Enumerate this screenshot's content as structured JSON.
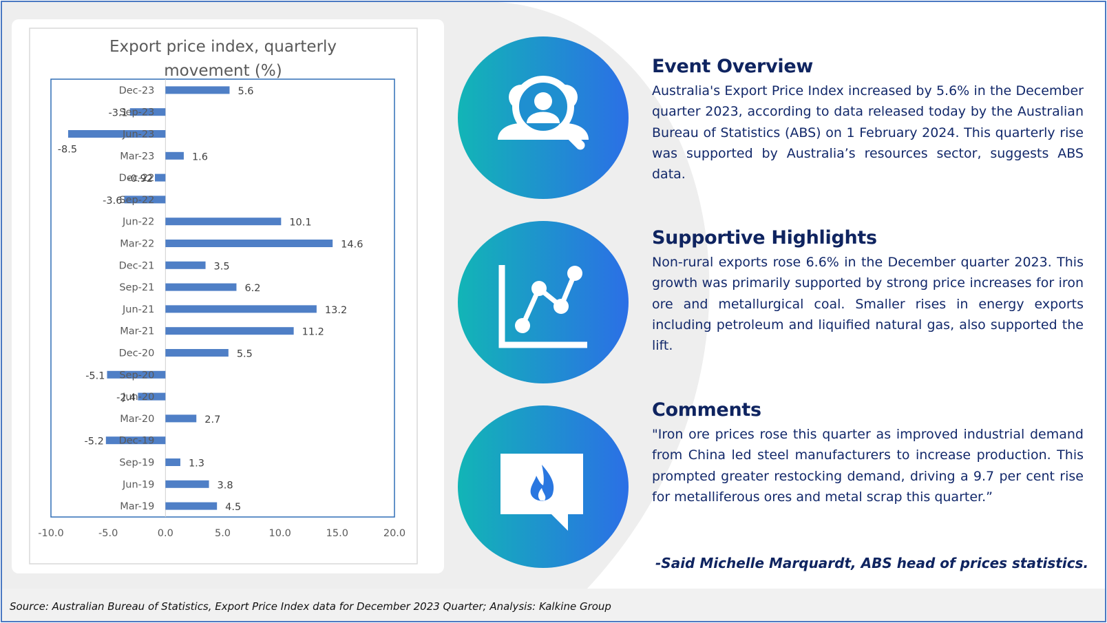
{
  "source_note": "Source: Australian Bureau of Statistics, Export Price Index  data for December 2023 Quarter; Analysis: Kalkine Group",
  "colors": {
    "bar": "#4f7fc6",
    "heading": "#0f2460",
    "body_text": "#12286a",
    "circle_gradient_start": "#12b5b6",
    "circle_gradient_end": "#2b6fe6",
    "frame": "#4a78c2"
  },
  "icons": [
    "magnifier-people-icon",
    "line-chart-icon",
    "speech-bubble-flame-icon"
  ],
  "sections": {
    "overview": {
      "heading": "Event Overview",
      "body": "Australia's Export Price Index increased by 5.6% in the December quarter 2023, according to data released today by the Australian Bureau of Statistics (ABS) on 1 February 2024. This quarterly rise was supported by Australia’s resources sector, suggests ABS data."
    },
    "highlights": {
      "heading": "Supportive Highlights",
      "body": "Non-rural exports rose 6.6% in the December quarter 2023. This growth was primarily supported by strong price increases for iron ore and metallurgical coal. Smaller rises in energy exports including petroleum and liquified natural gas, also supported the lift."
    },
    "comments": {
      "heading": "Comments",
      "body": "\"Iron ore prices rose this quarter as improved industrial demand from China led steel manufacturers to increase production. This prompted greater restocking demand, driving a 9.7 per cent rise for metalliferous ores and metal scrap this quarter.”",
      "attribution": "-Said Michelle Marquardt, ABS head of prices statistics."
    }
  },
  "chart_data": {
    "type": "bar",
    "orientation": "horizontal",
    "title": "Export price index, quarterly movement (%)",
    "title_lines": [
      "Export price index, quarterly",
      "movement (%)"
    ],
    "categories": [
      "Dec-23",
      "Sep-23",
      "Jun-23",
      "Mar-23",
      "Dec-22",
      "Sep-22",
      "Jun-22",
      "Mar-22",
      "Dec-21",
      "Sep-21",
      "Jun-21",
      "Mar-21",
      "Dec-20",
      "Sep-20",
      "Jun-20",
      "Mar-20",
      "Dec-19",
      "Sep-19",
      "Jun-19",
      "Mar-19"
    ],
    "values": [
      5.6,
      -3.1,
      -8.5,
      1.6,
      -0.92,
      -3.6,
      10.1,
      14.6,
      3.5,
      6.2,
      13.2,
      11.2,
      5.5,
      -5.1,
      -2.4,
      2.7,
      -5.2,
      1.3,
      3.8,
      4.5
    ],
    "value_labels": [
      "5.6",
      "-3.1",
      "-8.5",
      "1.6",
      "-0.92",
      "-3.6",
      "10.1",
      "14.6",
      "3.5",
      "6.2",
      "13.2",
      "11.2",
      "5.5",
      "-5.1",
      "-2.4",
      "2.7",
      "-5.2",
      "1.3",
      "3.8",
      "4.5"
    ],
    "xlim": [
      -10,
      20
    ],
    "xticks": [
      -10,
      -5,
      0,
      5,
      10,
      15,
      20
    ],
    "xtick_labels": [
      "-10.0",
      "-5.0",
      "0.0",
      "5.0",
      "10.0",
      "15.0",
      "20.0"
    ],
    "xlabel": "",
    "ylabel": "",
    "grid": false,
    "legend": "none"
  }
}
